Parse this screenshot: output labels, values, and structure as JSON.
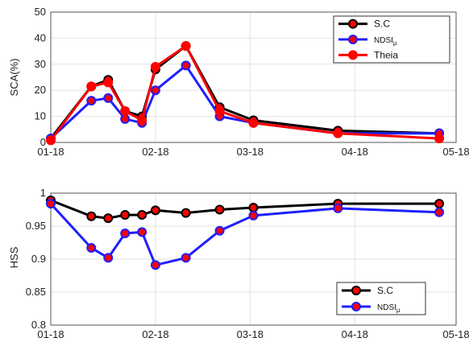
{
  "chart_data": [
    {
      "type": "line",
      "ylabel": "SCA(%)",
      "xlabel": "",
      "title": "",
      "x_ticks": [
        "01-18",
        "02-18",
        "03-18",
        "04-18",
        "05-18"
      ],
      "xlim": [
        "2018-01-01",
        "2018-05-01"
      ],
      "ylim": [
        0,
        50
      ],
      "y_ticks": [
        0,
        10,
        20,
        30,
        40,
        50
      ],
      "grid": true,
      "legend_position": "top-right",
      "x": [
        "2018-01-01",
        "2018-01-13",
        "2018-01-18",
        "2018-01-23",
        "2018-01-28",
        "2018-02-01",
        "2018-02-10",
        "2018-02-20",
        "2018-03-02",
        "2018-03-27",
        "2018-04-26"
      ],
      "series": [
        {
          "name": "S.C",
          "color": "#000000",
          "values": [
            1.5,
            21.5,
            24,
            12,
            10,
            28,
            37,
            13.5,
            8.5,
            4.5,
            3.5
          ]
        },
        {
          "name": "NDSI",
          "name_sub": "μ",
          "color": "#1f1fff",
          "values": [
            1.5,
            16,
            17,
            9,
            7.5,
            20,
            29.5,
            10,
            7.5,
            3.5,
            3.5
          ]
        },
        {
          "name": "Theia",
          "color": "#ff0000",
          "values": [
            0.8,
            21.5,
            23,
            12,
            8.5,
            29,
            37,
            12,
            7.5,
            3.5,
            1.5
          ]
        }
      ]
    },
    {
      "type": "line",
      "ylabel": "HSS",
      "xlabel": "",
      "title": "",
      "x_ticks": [
        "01-18",
        "02-18",
        "03-18",
        "04-18",
        "05-18"
      ],
      "xlim": [
        "2018-01-01",
        "2018-05-01"
      ],
      "ylim": [
        0.8,
        1
      ],
      "y_ticks": [
        0.8,
        0.85,
        0.9,
        0.95,
        1
      ],
      "grid": true,
      "legend_position": "bottom-right",
      "x": [
        "2018-01-01",
        "2018-01-13",
        "2018-01-18",
        "2018-01-23",
        "2018-01-28",
        "2018-02-01",
        "2018-02-10",
        "2018-02-20",
        "2018-03-02",
        "2018-03-27",
        "2018-04-26"
      ],
      "series": [
        {
          "name": "S.C",
          "color": "#000000",
          "values": [
            0.989,
            0.965,
            0.962,
            0.967,
            0.967,
            0.974,
            0.97,
            0.975,
            0.978,
            0.984,
            0.984
          ]
        },
        {
          "name": "NDSI",
          "name_sub": "μ",
          "color": "#1f1fff",
          "values": [
            0.984,
            0.917,
            0.902,
            0.939,
            0.941,
            0.891,
            0.902,
            0.943,
            0.966,
            0.977,
            0.971
          ]
        }
      ]
    }
  ]
}
